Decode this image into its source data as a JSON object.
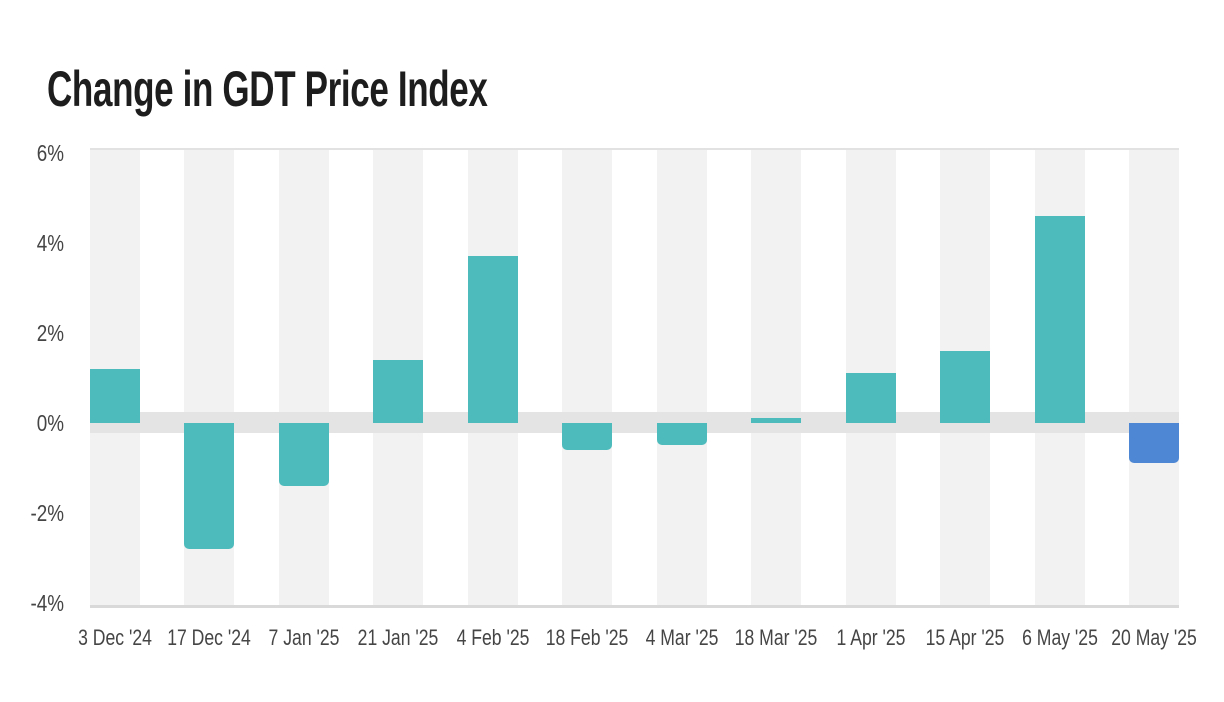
{
  "chart_data": {
    "type": "bar",
    "title": "Change in GDT Price Index",
    "categories": [
      "3 Dec '24",
      "17 Dec '24",
      "7 Jan '25",
      "21 Jan '25",
      "4 Feb '25",
      "18 Feb '25",
      "4 Mar '25",
      "18 Mar '25",
      "1 Apr '25",
      "15 Apr '25",
      "6 May '25",
      "20 May '25"
    ],
    "values": [
      1.2,
      -2.8,
      -1.4,
      1.4,
      3.7,
      -0.6,
      -0.5,
      0.1,
      1.1,
      1.6,
      4.6,
      -0.9
    ],
    "unit": "%",
    "xlabel": "",
    "ylabel": "",
    "ylim": [
      -4,
      6
    ],
    "y_ticks": [
      {
        "label": "6%",
        "value": 6
      },
      {
        "label": "4%",
        "value": 4
      },
      {
        "label": "2%",
        "value": 2
      },
      {
        "label": "0%",
        "value": 0
      },
      {
        "label": "-2%",
        "value": -2
      },
      {
        "label": "-4%",
        "value": -4
      }
    ],
    "grid": "top and bottom hairlines, thick light band at zero, alternating light category stripes",
    "legend": "none",
    "bar_colors": [
      "#4dbbbc",
      "#4dbbbc",
      "#4dbbbc",
      "#4dbbbc",
      "#4dbbbc",
      "#4dbbbc",
      "#4dbbbc",
      "#4dbbbc",
      "#4dbbbc",
      "#4dbbbc",
      "#4dbbbc",
      "#4e87d3"
    ],
    "highlight_category": "20 May '25"
  },
  "colors": {
    "bar_teal": "#4dbbbc",
    "bar_blue_highlight": "#4e87d3",
    "stripe": "#f2f2f2",
    "zero_band": "#e4e4e4",
    "grid_top": "#e2e2e2",
    "grid_bottom": "#d9d9d9",
    "title_text": "#1d1d1d",
    "axis_text": "#454545"
  }
}
